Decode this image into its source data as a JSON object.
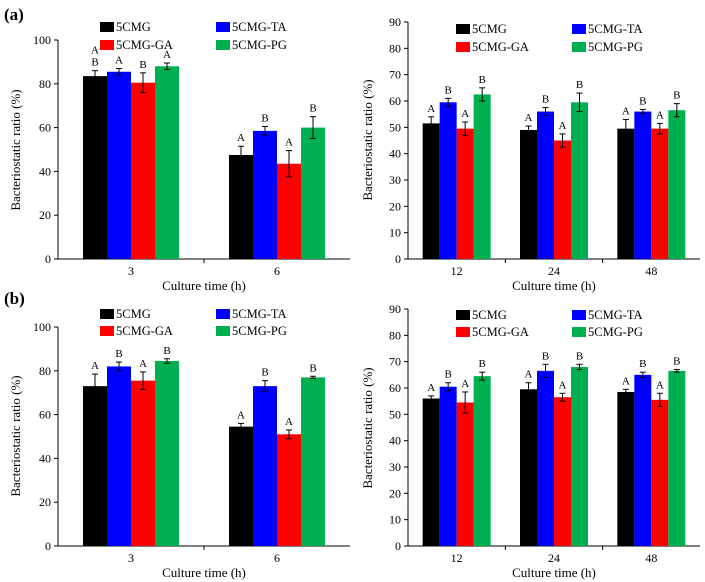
{
  "figure": {
    "series_colors": [
      "#000000",
      "#0000ff",
      "#ff0000",
      "#00b050"
    ],
    "panels": [
      {
        "label": "(a)"
      },
      {
        "label": "(b)"
      }
    ]
  },
  "chart_data": [
    {
      "type": "bar",
      "panel": "(a)",
      "position": "left",
      "xlabel": "Culture time (h)",
      "ylabel": "Bacteriostatic ratio (%)",
      "ylim": [
        0,
        100
      ],
      "yticks": [
        0,
        20,
        40,
        60,
        80,
        100
      ],
      "categories": [
        "3",
        "6"
      ],
      "series": [
        {
          "name": "5CMG",
          "values": [
            83.5,
            47.5
          ],
          "errors": [
            2.5,
            4
          ],
          "letters": [
            "A\nB",
            "A"
          ]
        },
        {
          "name": "5CMG-TA",
          "values": [
            85.5,
            58.5
          ],
          "errors": [
            1.5,
            2
          ],
          "letters": [
            "A",
            "B"
          ]
        },
        {
          "name": "5CMG-GA",
          "values": [
            80.5,
            43.5
          ],
          "errors": [
            4.5,
            6
          ],
          "letters": [
            "B",
            "A"
          ]
        },
        {
          "name": "5CMG-PG",
          "values": [
            88,
            60
          ],
          "errors": [
            1.5,
            5
          ],
          "letters": [
            "A",
            "B"
          ]
        }
      ]
    },
    {
      "type": "bar",
      "panel": "(a)",
      "position": "right",
      "xlabel": "Culture time (h)",
      "ylabel": "Bacteriostatic ratio (%)",
      "ylim": [
        0,
        90
      ],
      "yticks": [
        0,
        10,
        20,
        30,
        40,
        50,
        60,
        70,
        80,
        90
      ],
      "categories": [
        "12",
        "24",
        "48"
      ],
      "series": [
        {
          "name": "5CMG",
          "values": [
            51.5,
            49,
            49.5
          ],
          "errors": [
            2.5,
            1.5,
            3.5
          ],
          "letters": [
            "A",
            "A",
            "A"
          ]
        },
        {
          "name": "5CMG-TA",
          "values": [
            59.5,
            56,
            56
          ],
          "errors": [
            1.5,
            1.5,
            0.8
          ],
          "letters": [
            "B",
            "B",
            "B"
          ]
        },
        {
          "name": "5CMG-GA",
          "values": [
            49.5,
            45,
            49.5
          ],
          "errors": [
            2.5,
            2.5,
            2
          ],
          "letters": [
            "A",
            "A",
            "A"
          ]
        },
        {
          "name": "5CMG-PG",
          "values": [
            62.5,
            59.5,
            56.5
          ],
          "errors": [
            2.5,
            3.5,
            2.5
          ],
          "letters": [
            "B",
            "B",
            "B"
          ]
        }
      ]
    },
    {
      "type": "bar",
      "panel": "(b)",
      "position": "left",
      "xlabel": "Culture time (h)",
      "ylabel": "Bacteriostatic ratio (%)",
      "ylim": [
        0,
        100
      ],
      "yticks": [
        0,
        20,
        40,
        60,
        80,
        100
      ],
      "categories": [
        "3",
        "6"
      ],
      "series": [
        {
          "name": "5CMG",
          "values": [
            73,
            54.5
          ],
          "errors": [
            5.5,
            1.5
          ],
          "letters": [
            "A",
            "A"
          ]
        },
        {
          "name": "5CMG-TA",
          "values": [
            82,
            73
          ],
          "errors": [
            2,
            2.5
          ],
          "letters": [
            "B",
            "B"
          ]
        },
        {
          "name": "5CMG-GA",
          "values": [
            75.5,
            51
          ],
          "errors": [
            4,
            2
          ],
          "letters": [
            "A",
            "A"
          ]
        },
        {
          "name": "5CMG-PG",
          "values": [
            84.5,
            77
          ],
          "errors": [
            1,
            0.5
          ],
          "letters": [
            "B",
            "B"
          ]
        }
      ]
    },
    {
      "type": "bar",
      "panel": "(b)",
      "position": "right",
      "xlabel": "Culture time (h)",
      "ylabel": "Bacteriostatic ratio (%)",
      "ylim": [
        0,
        90
      ],
      "yticks": [
        0,
        10,
        20,
        30,
        40,
        50,
        60,
        70,
        80,
        90
      ],
      "categories": [
        "12",
        "24",
        "48"
      ],
      "series": [
        {
          "name": "5CMG",
          "values": [
            56,
            59.5,
            58.5
          ],
          "errors": [
            1,
            2.5,
            1
          ],
          "letters": [
            "A",
            "A",
            "A"
          ]
        },
        {
          "name": "5CMG-TA",
          "values": [
            60.5,
            66.5,
            65
          ],
          "errors": [
            1.5,
            2.5,
            1
          ],
          "letters": [
            "B",
            "B",
            "B"
          ]
        },
        {
          "name": "5CMG-GA",
          "values": [
            54.5,
            56.5,
            55.5
          ],
          "errors": [
            4,
            1.5,
            2.5
          ],
          "letters": [
            "A",
            "A",
            "A"
          ]
        },
        {
          "name": "5CMG-PG",
          "values": [
            64.5,
            68,
            66.5
          ],
          "errors": [
            1.5,
            1,
            0.5
          ],
          "letters": [
            "B",
            "B",
            "B"
          ]
        }
      ]
    }
  ]
}
